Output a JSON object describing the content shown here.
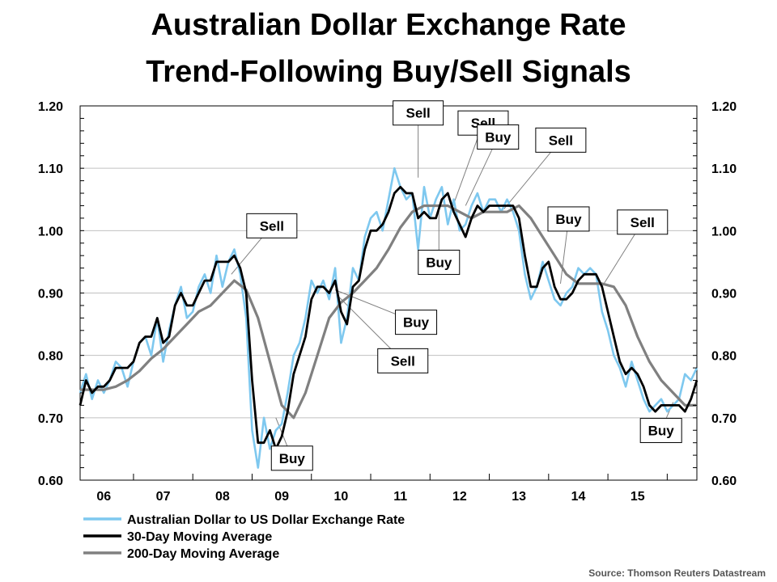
{
  "chart_data": {
    "type": "line",
    "title": "Australian Dollar Exchange Rate",
    "subtitle": "Trend-Following Buy/Sell Signals",
    "source": "Source: Thomson Reuters Datastream",
    "ylim": [
      0.6,
      1.2
    ],
    "y_ticks": [
      "1.20",
      "1.10",
      "1.00",
      "0.90",
      "0.80",
      "0.70",
      "0.60"
    ],
    "y_tick_values": [
      1.2,
      1.1,
      1.0,
      0.9,
      0.8,
      0.7,
      0.6
    ],
    "xlim": [
      2005.6,
      2016.0
    ],
    "x_ticks": [
      "06",
      "07",
      "08",
      "09",
      "10",
      "11",
      "12",
      "13",
      "14",
      "15"
    ],
    "x_tick_values": [
      2006,
      2007,
      2008,
      2009,
      2010,
      2011,
      2012,
      2013,
      2014,
      2015
    ],
    "grid": true,
    "legend_placement": "bottom",
    "colors": {
      "spot": "#7ec8ef",
      "ma30": "#000000",
      "ma200": "#808080"
    },
    "series": [
      {
        "name": "Australian Dollar to US Dollar Exchange Rate",
        "x": [
          2005.6,
          2005.7,
          2005.8,
          2005.9,
          2006.0,
          2006.1,
          2006.2,
          2006.3,
          2006.4,
          2006.5,
          2006.6,
          2006.7,
          2006.8,
          2006.9,
          2007.0,
          2007.1,
          2007.2,
          2007.3,
          2007.4,
          2007.5,
          2007.6,
          2007.7,
          2007.8,
          2007.9,
          2008.0,
          2008.1,
          2008.2,
          2008.3,
          2008.4,
          2008.5,
          2008.6,
          2008.7,
          2008.8,
          2008.9,
          2009.0,
          2009.1,
          2009.2,
          2009.3,
          2009.4,
          2009.5,
          2009.6,
          2009.7,
          2009.8,
          2009.9,
          2010.0,
          2010.1,
          2010.2,
          2010.3,
          2010.4,
          2010.5,
          2010.6,
          2010.7,
          2010.8,
          2010.9,
          2011.0,
          2011.1,
          2011.2,
          2011.3,
          2011.4,
          2011.5,
          2011.6,
          2011.7,
          2011.8,
          2011.9,
          2012.0,
          2012.1,
          2012.2,
          2012.3,
          2012.4,
          2012.5,
          2012.6,
          2012.7,
          2012.8,
          2012.9,
          2013.0,
          2013.1,
          2013.2,
          2013.3,
          2013.4,
          2013.5,
          2013.6,
          2013.7,
          2013.8,
          2013.9,
          2014.0,
          2014.1,
          2014.2,
          2014.3,
          2014.4,
          2014.5,
          2014.6,
          2014.7,
          2014.8,
          2014.9,
          2015.0,
          2015.1,
          2015.2,
          2015.3,
          2015.4,
          2015.5,
          2015.6,
          2015.7,
          2015.8,
          2015.9,
          2016.0
        ],
        "values": [
          0.74,
          0.77,
          0.73,
          0.76,
          0.74,
          0.76,
          0.79,
          0.78,
          0.75,
          0.79,
          0.82,
          0.83,
          0.8,
          0.86,
          0.79,
          0.84,
          0.88,
          0.91,
          0.86,
          0.87,
          0.91,
          0.93,
          0.9,
          0.96,
          0.91,
          0.95,
          0.97,
          0.93,
          0.86,
          0.68,
          0.62,
          0.7,
          0.65,
          0.68,
          0.69,
          0.74,
          0.8,
          0.82,
          0.86,
          0.92,
          0.9,
          0.92,
          0.89,
          0.94,
          0.82,
          0.86,
          0.94,
          0.92,
          0.99,
          1.02,
          1.03,
          1.0,
          1.05,
          1.1,
          1.07,
          1.05,
          1.06,
          0.97,
          1.07,
          1.02,
          1.05,
          1.07,
          1.01,
          1.05,
          1.0,
          1.01,
          1.04,
          1.06,
          1.03,
          1.05,
          1.05,
          1.03,
          1.05,
          1.03,
          1.0,
          0.93,
          0.89,
          0.91,
          0.95,
          0.92,
          0.89,
          0.88,
          0.9,
          0.91,
          0.94,
          0.93,
          0.94,
          0.93,
          0.87,
          0.84,
          0.8,
          0.78,
          0.75,
          0.79,
          0.76,
          0.73,
          0.71,
          0.72,
          0.73,
          0.71,
          0.72,
          0.73,
          0.77,
          0.76,
          0.78
        ]
      },
      {
        "name": "30-Day Moving Average",
        "x": [
          2005.6,
          2005.7,
          2005.8,
          2005.9,
          2006.0,
          2006.1,
          2006.2,
          2006.3,
          2006.4,
          2006.5,
          2006.6,
          2006.7,
          2006.8,
          2006.9,
          2007.0,
          2007.1,
          2007.2,
          2007.3,
          2007.4,
          2007.5,
          2007.6,
          2007.7,
          2007.8,
          2007.9,
          2008.0,
          2008.1,
          2008.2,
          2008.3,
          2008.4,
          2008.5,
          2008.6,
          2008.7,
          2008.8,
          2008.9,
          2009.0,
          2009.1,
          2009.2,
          2009.3,
          2009.4,
          2009.5,
          2009.6,
          2009.7,
          2009.8,
          2009.9,
          2010.0,
          2010.1,
          2010.2,
          2010.3,
          2010.4,
          2010.5,
          2010.6,
          2010.7,
          2010.8,
          2010.9,
          2011.0,
          2011.1,
          2011.2,
          2011.3,
          2011.4,
          2011.5,
          2011.6,
          2011.7,
          2011.8,
          2011.9,
          2012.0,
          2012.1,
          2012.2,
          2012.3,
          2012.4,
          2012.5,
          2012.6,
          2012.7,
          2012.8,
          2012.9,
          2013.0,
          2013.1,
          2013.2,
          2013.3,
          2013.4,
          2013.5,
          2013.6,
          2013.7,
          2013.8,
          2013.9,
          2014.0,
          2014.1,
          2014.2,
          2014.3,
          2014.4,
          2014.5,
          2014.6,
          2014.7,
          2014.8,
          2014.9,
          2015.0,
          2015.1,
          2015.2,
          2015.3,
          2015.4,
          2015.5,
          2015.6,
          2015.7,
          2015.8,
          2015.9,
          2016.0
        ],
        "values": [
          0.72,
          0.76,
          0.74,
          0.75,
          0.75,
          0.76,
          0.78,
          0.78,
          0.78,
          0.79,
          0.82,
          0.83,
          0.83,
          0.86,
          0.82,
          0.83,
          0.88,
          0.9,
          0.88,
          0.88,
          0.9,
          0.92,
          0.92,
          0.95,
          0.95,
          0.95,
          0.96,
          0.94,
          0.9,
          0.76,
          0.66,
          0.66,
          0.68,
          0.65,
          0.67,
          0.71,
          0.77,
          0.8,
          0.83,
          0.89,
          0.91,
          0.91,
          0.9,
          0.92,
          0.87,
          0.85,
          0.91,
          0.92,
          0.97,
          1.0,
          1.0,
          1.01,
          1.03,
          1.06,
          1.07,
          1.06,
          1.06,
          1.02,
          1.03,
          1.02,
          1.02,
          1.05,
          1.06,
          1.03,
          1.01,
          0.99,
          1.02,
          1.04,
          1.03,
          1.04,
          1.04,
          1.04,
          1.04,
          1.04,
          1.02,
          0.96,
          0.91,
          0.91,
          0.94,
          0.95,
          0.91,
          0.89,
          0.89,
          0.9,
          0.92,
          0.93,
          0.93,
          0.93,
          0.91,
          0.87,
          0.83,
          0.79,
          0.77,
          0.78,
          0.77,
          0.75,
          0.72,
          0.71,
          0.72,
          0.72,
          0.72,
          0.72,
          0.71,
          0.73,
          0.76
        ]
      },
      {
        "name": "200-Day Moving Average",
        "x": [
          2005.6,
          2005.8,
          2006.0,
          2006.2,
          2006.4,
          2006.6,
          2006.8,
          2007.0,
          2007.2,
          2007.4,
          2007.6,
          2007.8,
          2008.0,
          2008.2,
          2008.4,
          2008.6,
          2008.8,
          2009.0,
          2009.2,
          2009.4,
          2009.6,
          2009.8,
          2010.0,
          2010.2,
          2010.4,
          2010.6,
          2010.8,
          2011.0,
          2011.2,
          2011.4,
          2011.6,
          2011.8,
          2012.0,
          2012.2,
          2012.4,
          2012.6,
          2012.8,
          2013.0,
          2013.2,
          2013.4,
          2013.6,
          2013.8,
          2014.0,
          2014.2,
          2014.4,
          2014.6,
          2014.8,
          2015.0,
          2015.2,
          2015.4,
          2015.6,
          2015.8,
          2016.0
        ],
        "values": [
          0.745,
          0.745,
          0.745,
          0.75,
          0.76,
          0.775,
          0.795,
          0.81,
          0.83,
          0.85,
          0.87,
          0.88,
          0.9,
          0.92,
          0.905,
          0.86,
          0.79,
          0.72,
          0.7,
          0.74,
          0.8,
          0.86,
          0.885,
          0.9,
          0.92,
          0.94,
          0.97,
          1.005,
          1.03,
          1.04,
          1.04,
          1.04,
          1.03,
          1.02,
          1.03,
          1.03,
          1.03,
          1.04,
          1.02,
          0.99,
          0.96,
          0.93,
          0.915,
          0.915,
          0.915,
          0.91,
          0.88,
          0.83,
          0.79,
          0.76,
          0.74,
          0.72,
          0.72
        ]
      }
    ],
    "annotations": [
      {
        "label": "Sell",
        "x": 2008.15,
        "y": 0.93
      },
      {
        "label": "Buy",
        "x": 2008.9,
        "y": 0.7
      },
      {
        "label": "Buy",
        "x": 2009.9,
        "y": 0.905
      },
      {
        "label": "Sell",
        "x": 2009.95,
        "y": 0.895
      },
      {
        "label": "Sell",
        "x": 2011.3,
        "y": 1.085
      },
      {
        "label": "Sell",
        "x": 2011.85,
        "y": 1.03
      },
      {
        "label": "Buy",
        "x": 2011.65,
        "y": 1.04
      },
      {
        "label": "Buy",
        "x": 2012.1,
        "y": 1.04
      },
      {
        "label": "Sell",
        "x": 2012.75,
        "y": 1.035
      },
      {
        "label": "Buy",
        "x": 2013.7,
        "y": 0.915
      },
      {
        "label": "Sell",
        "x": 2014.4,
        "y": 0.91
      },
      {
        "label": "Buy",
        "x": 2015.6,
        "y": 0.725
      }
    ]
  }
}
